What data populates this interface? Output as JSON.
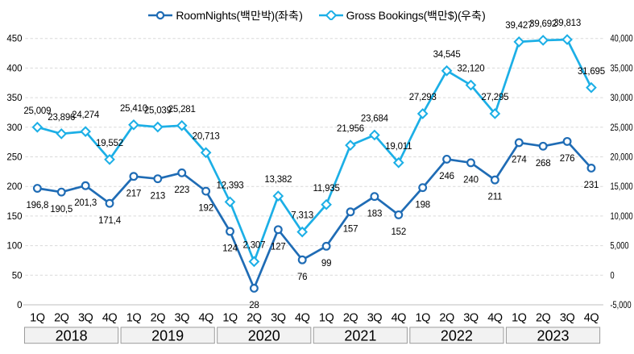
{
  "chart": {
    "legend": [
      {
        "label": "RoomNights(백만박)(좌축)",
        "marker": "circle"
      },
      {
        "label": "Gross Bookings(백만$)(우축)",
        "marker": "diamond"
      }
    ],
    "quarter_labels": [
      "1Q",
      "2Q",
      "3Q",
      "4Q"
    ],
    "year_labels": [
      "2018",
      "2019",
      "2020",
      "2021",
      "2022",
      "2023"
    ]
  },
  "chart_data": {
    "type": "line",
    "x": [
      "1Q 2018",
      "2Q 2018",
      "3Q 2018",
      "4Q 2018",
      "1Q 2019",
      "2Q 2019",
      "3Q 2019",
      "4Q 2019",
      "1Q 2020",
      "2Q 2020",
      "3Q 2020",
      "4Q 2020",
      "1Q 2021",
      "2Q 2021",
      "3Q 2021",
      "4Q 2021",
      "1Q 2022",
      "2Q 2022",
      "3Q 2022",
      "4Q 2022",
      "1Q 2023",
      "2Q 2023",
      "3Q 2023",
      "4Q 2023"
    ],
    "series": [
      {
        "name": "RoomNights(백만박)(좌축)",
        "axis": "left",
        "marker": "circle",
        "color": "#1F6CB5",
        "values": [
          196.8,
          190.5,
          201.3,
          171.4,
          217,
          213,
          223,
          192,
          124,
          28,
          127,
          76,
          99,
          157,
          183,
          152,
          198,
          246,
          240,
          211,
          274,
          268,
          276,
          231
        ],
        "data_labels": [
          "196,8",
          "190,5",
          "201,3",
          "171,4",
          "217",
          "213",
          "223",
          "192",
          "124",
          "28",
          "127",
          "76",
          "99",
          "157",
          "183",
          "152",
          "198",
          "246",
          "240",
          "211",
          "274",
          "268",
          "276",
          "231"
        ]
      },
      {
        "name": "Gross Bookings(백만$)(우축)",
        "axis": "right",
        "marker": "diamond",
        "color": "#1CAFE6",
        "values": [
          25009,
          23896,
          24274,
          19552,
          25410,
          25039,
          25281,
          20713,
          12393,
          2307,
          13382,
          7313,
          11935,
          21956,
          23684,
          19011,
          27293,
          34545,
          32120,
          27295,
          39427,
          39692,
          39813,
          31695
        ],
        "data_labels": [
          "25,009",
          "23,896",
          "24,274",
          "19,552",
          "25,410",
          "25,039",
          "25,281",
          "20,713",
          "12,393",
          "2,307",
          "13,382",
          "7,313",
          "11,935",
          "21,956",
          "23,684",
          "19,011",
          "27,293",
          "34,545",
          "32,120",
          "27,295",
          "39,427",
          "39,692",
          "39,813",
          "31,695"
        ]
      }
    ],
    "left_axis": {
      "min": 0,
      "max": 450,
      "step": 50,
      "tick_labels": [
        "0",
        "50",
        "100",
        "150",
        "200",
        "250",
        "300",
        "350",
        "400",
        "450"
      ]
    },
    "right_axis": {
      "min": -5000,
      "max": 40000,
      "step": 5000,
      "tick_labels": [
        "-5,000",
        "0",
        "5,000",
        "10,000",
        "15,000",
        "20,000",
        "25,000",
        "30,000",
        "35,000",
        "40,000"
      ]
    },
    "grid": true,
    "legend_position": "top"
  }
}
